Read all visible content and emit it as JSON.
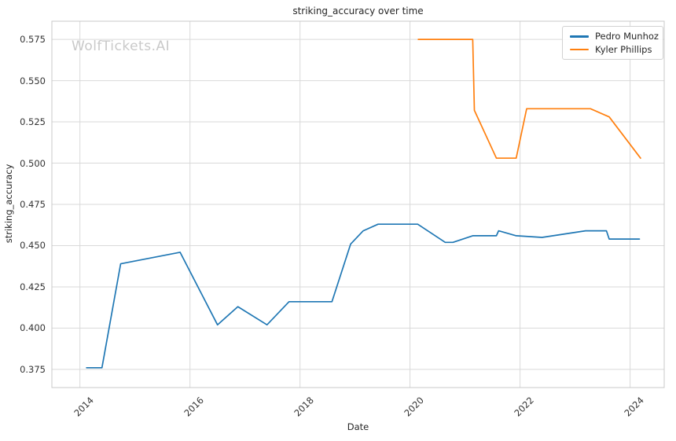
{
  "watermark": "WolfTickets.AI",
  "colors": {
    "background": "#ffffff",
    "grid": "#d9d9d9",
    "spine": "#c8c8c8",
    "text": "#262626",
    "tick_text": "#333333",
    "watermark": "#c9c9c9",
    "series_blue": "#1f77b4",
    "series_orange": "#ff7f0e"
  },
  "chart_data": {
    "type": "line",
    "title": "striking_accuracy over time",
    "xlabel": "Date",
    "ylabel": "striking_accuracy",
    "grid": true,
    "legend_position": "upper right",
    "xlim": [
      2013.49,
      2024.62
    ],
    "ylim": [
      0.364,
      0.586
    ],
    "x_ticks": {
      "values": [
        2014,
        2016,
        2018,
        2020,
        2022,
        2024
      ],
      "labels": [
        "2014",
        "2016",
        "2018",
        "2020",
        "2022",
        "2024"
      ]
    },
    "y_ticks": {
      "values": [
        0.375,
        0.4,
        0.425,
        0.45,
        0.475,
        0.5,
        0.525,
        0.55,
        0.575
      ],
      "labels": [
        "0.375",
        "0.400",
        "0.425",
        "0.450",
        "0.475",
        "0.500",
        "0.525",
        "0.550",
        "0.575"
      ]
    },
    "series": [
      {
        "name": "Pedro Munhoz",
        "color": "#1f77b4",
        "x": [
          2014.12,
          2014.4,
          2014.74,
          2015.82,
          2016.5,
          2016.87,
          2017.4,
          2017.8,
          2018.58,
          2018.92,
          2019.15,
          2019.42,
          2020.14,
          2020.64,
          2020.78,
          2021.14,
          2021.57,
          2021.61,
          2021.93,
          2022.4,
          2023.19,
          2023.57,
          2023.62,
          2024.17
        ],
        "y": [
          0.376,
          0.376,
          0.439,
          0.446,
          0.402,
          0.413,
          0.402,
          0.416,
          0.416,
          0.451,
          0.459,
          0.463,
          0.463,
          0.452,
          0.452,
          0.456,
          0.456,
          0.459,
          0.456,
          0.455,
          0.459,
          0.459,
          0.454,
          0.454
        ]
      },
      {
        "name": "Kyler Phillips",
        "color": "#ff7f0e",
        "x": [
          2020.15,
          2021.14,
          2021.17,
          2021.57,
          2021.93,
          2022.12,
          2023.28,
          2023.62,
          2024.19
        ],
        "y": [
          0.575,
          0.575,
          0.532,
          0.503,
          0.503,
          0.533,
          0.533,
          0.528,
          0.503
        ]
      }
    ]
  }
}
